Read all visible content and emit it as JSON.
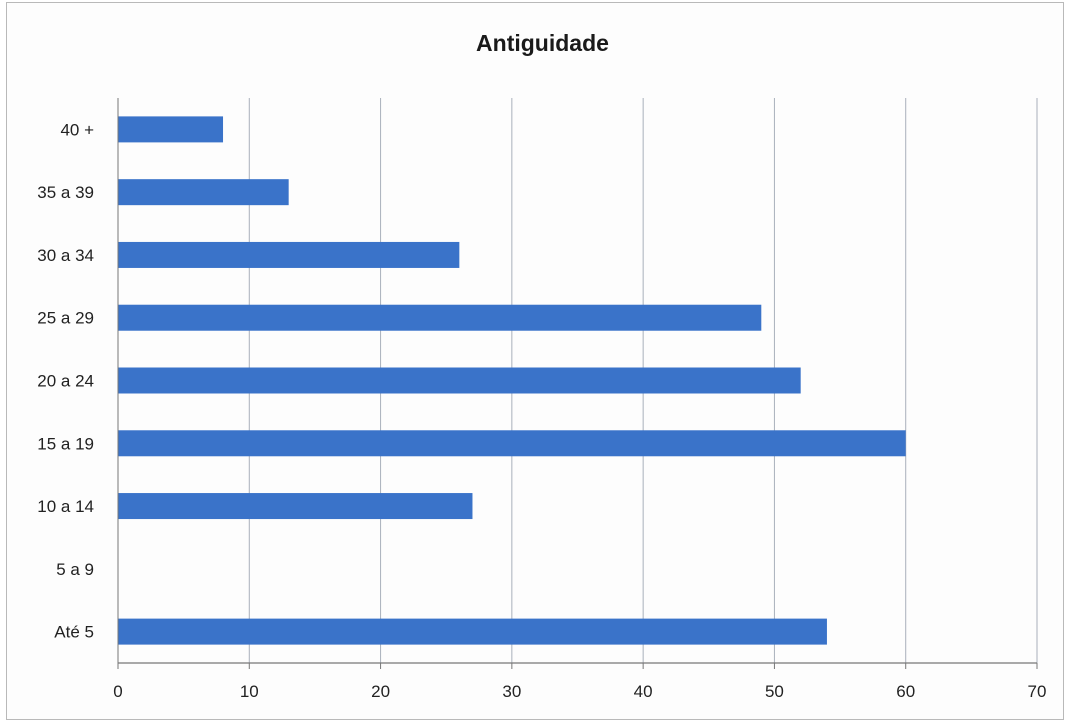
{
  "chart_data": {
    "type": "bar",
    "orientation": "horizontal",
    "title": "Antiguidade",
    "categories": [
      "40 +",
      "35 a 39",
      "30 a 34",
      "25 a 29",
      "20 a 24",
      "15 a 19",
      "10 a 14",
      "5 a 9",
      "Até 5"
    ],
    "values": [
      8,
      13,
      26,
      49,
      52,
      60,
      27,
      0,
      54
    ],
    "xlim": [
      0,
      70
    ],
    "xticks": [
      0,
      10,
      20,
      30,
      40,
      50,
      60,
      70
    ],
    "xlabel": "",
    "ylabel": "",
    "grid": "vertical",
    "bar_color": "#3a73c9"
  }
}
